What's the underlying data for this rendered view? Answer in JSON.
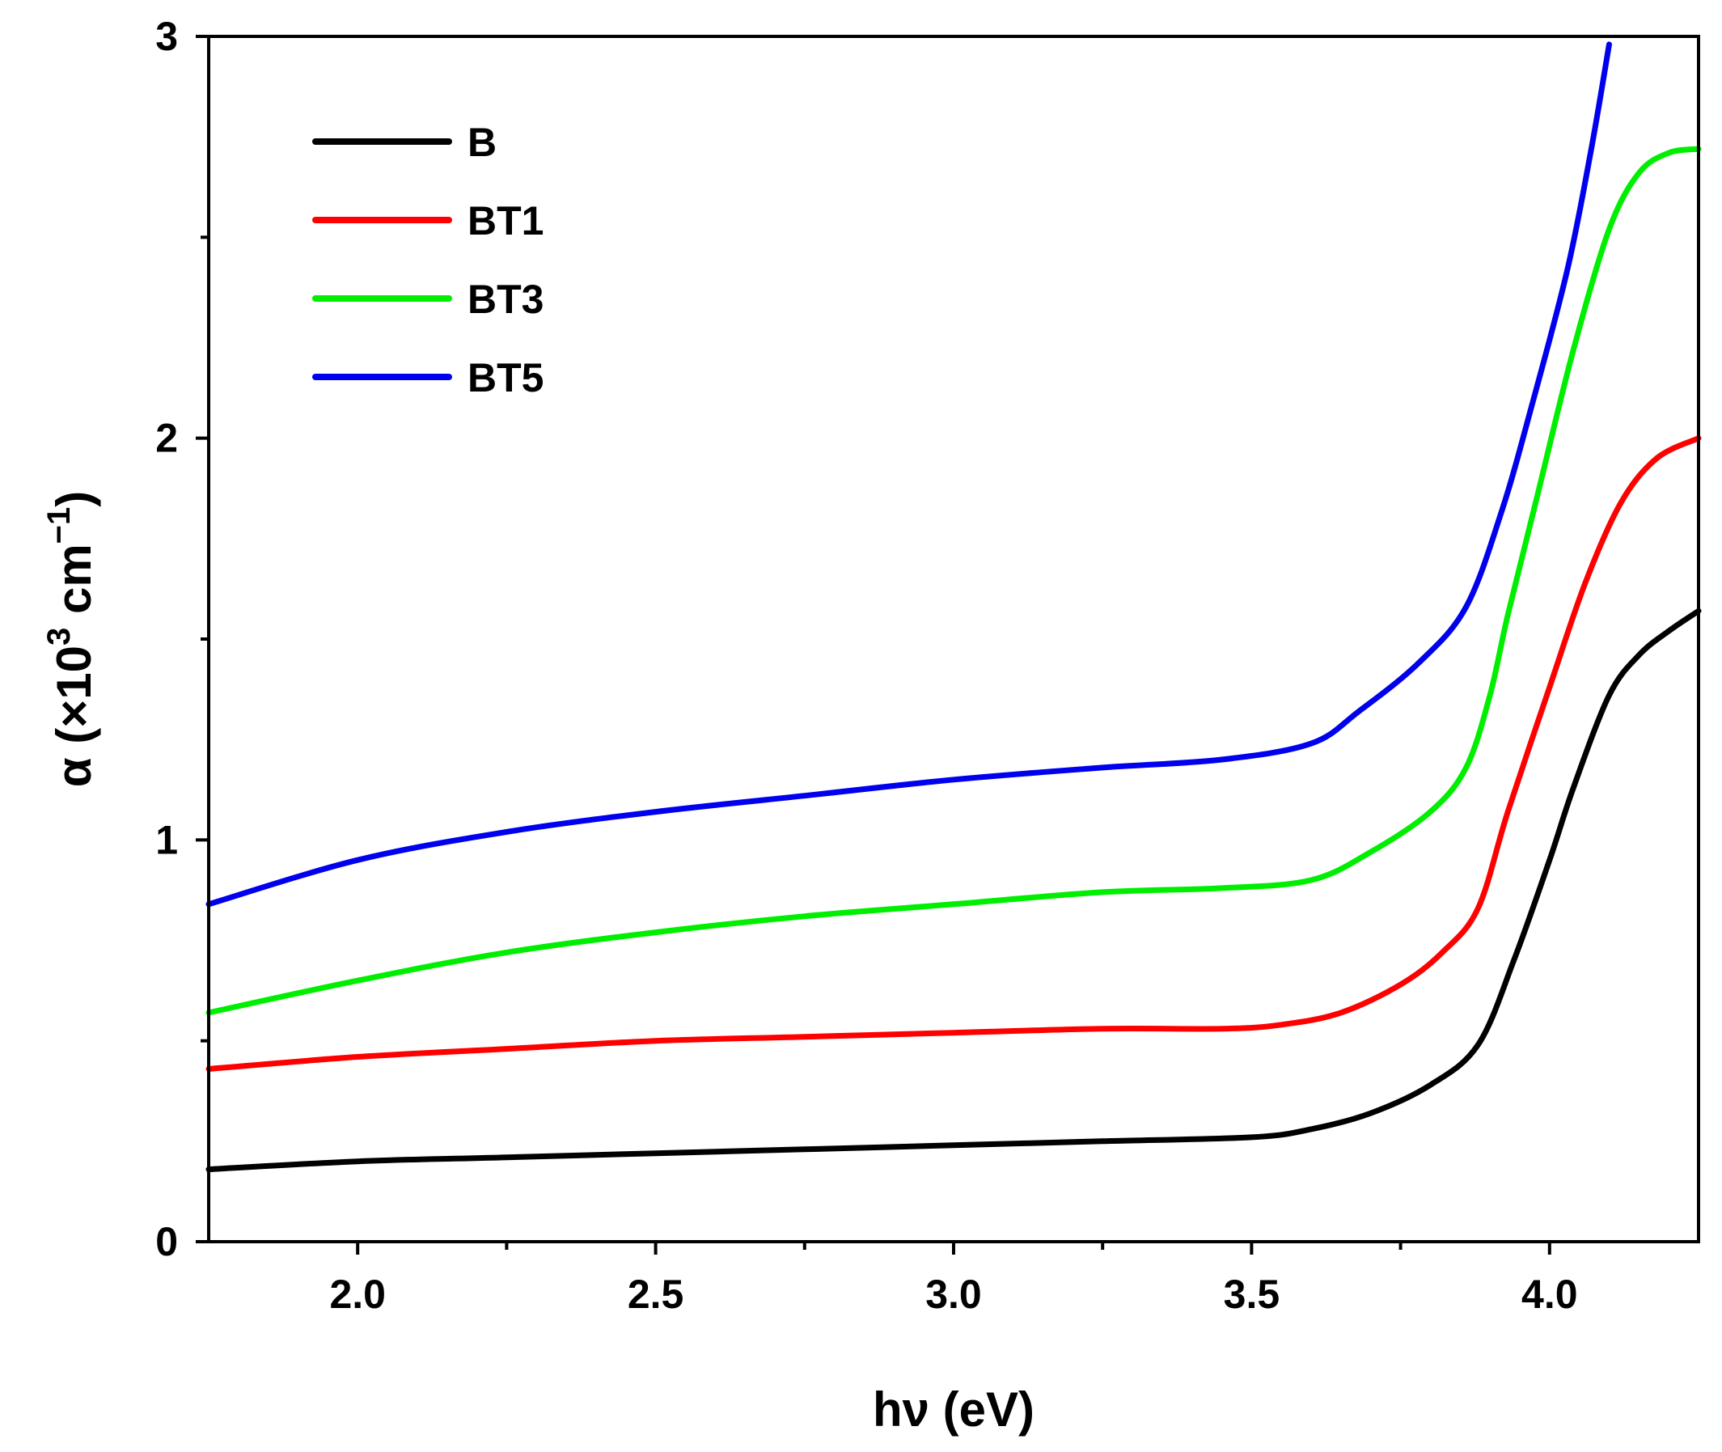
{
  "chart_data": {
    "type": "line",
    "title": "",
    "xlabel": "hν (eV)",
    "ylabel_prefix": "α (×10",
    "ylabel_sup1": "3",
    "ylabel_mid": " cm",
    "ylabel_sup2": "−1",
    "ylabel_suffix": ")",
    "xlim": [
      1.75,
      4.25
    ],
    "ylim": [
      0,
      3
    ],
    "xticks": [
      2.0,
      2.5,
      3.0,
      3.5,
      4.0
    ],
    "xtick_labels": [
      "2.0",
      "2.5",
      "3.0",
      "3.5",
      "4.0"
    ],
    "xminor": [
      2.25,
      2.75,
      3.25,
      3.75
    ],
    "yticks": [
      0,
      1,
      2,
      3
    ],
    "ytick_labels": [
      "0",
      "1",
      "2",
      "3"
    ],
    "yminor": [
      0.5,
      1.5,
      2.5
    ],
    "legend_position": "top-left",
    "series": [
      {
        "name": "B",
        "color": "#000000",
        "points": [
          [
            1.75,
            0.18
          ],
          [
            2.0,
            0.2
          ],
          [
            2.25,
            0.21
          ],
          [
            2.5,
            0.22
          ],
          [
            2.75,
            0.23
          ],
          [
            3.0,
            0.24
          ],
          [
            3.25,
            0.25
          ],
          [
            3.5,
            0.26
          ],
          [
            3.6,
            0.28
          ],
          [
            3.7,
            0.32
          ],
          [
            3.8,
            0.39
          ],
          [
            3.88,
            0.49
          ],
          [
            3.94,
            0.7
          ],
          [
            4.0,
            0.95
          ],
          [
            4.04,
            1.13
          ],
          [
            4.1,
            1.36
          ],
          [
            4.15,
            1.46
          ],
          [
            4.2,
            1.52
          ],
          [
            4.25,
            1.57
          ]
        ]
      },
      {
        "name": "BT1",
        "color": "#ff0000",
        "points": [
          [
            1.75,
            0.43
          ],
          [
            2.0,
            0.46
          ],
          [
            2.25,
            0.48
          ],
          [
            2.5,
            0.5
          ],
          [
            2.75,
            0.51
          ],
          [
            3.0,
            0.52
          ],
          [
            3.25,
            0.53
          ],
          [
            3.45,
            0.53
          ],
          [
            3.55,
            0.54
          ],
          [
            3.65,
            0.57
          ],
          [
            3.75,
            0.64
          ],
          [
            3.82,
            0.72
          ],
          [
            3.88,
            0.83
          ],
          [
            3.93,
            1.07
          ],
          [
            4.0,
            1.38
          ],
          [
            4.06,
            1.64
          ],
          [
            4.12,
            1.84
          ],
          [
            4.18,
            1.95
          ],
          [
            4.25,
            2.0
          ]
        ]
      },
      {
        "name": "BT3",
        "color": "#00ee00",
        "points": [
          [
            1.75,
            0.57
          ],
          [
            2.0,
            0.65
          ],
          [
            2.25,
            0.72
          ],
          [
            2.5,
            0.77
          ],
          [
            2.75,
            0.81
          ],
          [
            3.0,
            0.84
          ],
          [
            3.25,
            0.87
          ],
          [
            3.45,
            0.88
          ],
          [
            3.6,
            0.9
          ],
          [
            3.7,
            0.97
          ],
          [
            3.8,
            1.07
          ],
          [
            3.86,
            1.18
          ],
          [
            3.9,
            1.36
          ],
          [
            3.93,
            1.56
          ],
          [
            3.98,
            1.86
          ],
          [
            4.04,
            2.22
          ],
          [
            4.1,
            2.52
          ],
          [
            4.15,
            2.66
          ],
          [
            4.2,
            2.71
          ],
          [
            4.25,
            2.72
          ]
        ]
      },
      {
        "name": "BT5",
        "color": "#0000ee",
        "points": [
          [
            1.75,
            0.84
          ],
          [
            2.0,
            0.95
          ],
          [
            2.25,
            1.02
          ],
          [
            2.5,
            1.07
          ],
          [
            2.75,
            1.11
          ],
          [
            3.0,
            1.15
          ],
          [
            3.25,
            1.18
          ],
          [
            3.45,
            1.2
          ],
          [
            3.6,
            1.24
          ],
          [
            3.68,
            1.32
          ],
          [
            3.78,
            1.44
          ],
          [
            3.86,
            1.58
          ],
          [
            3.92,
            1.82
          ],
          [
            3.97,
            2.08
          ],
          [
            4.03,
            2.42
          ],
          [
            4.07,
            2.72
          ],
          [
            4.1,
            2.98
          ]
        ]
      }
    ]
  }
}
